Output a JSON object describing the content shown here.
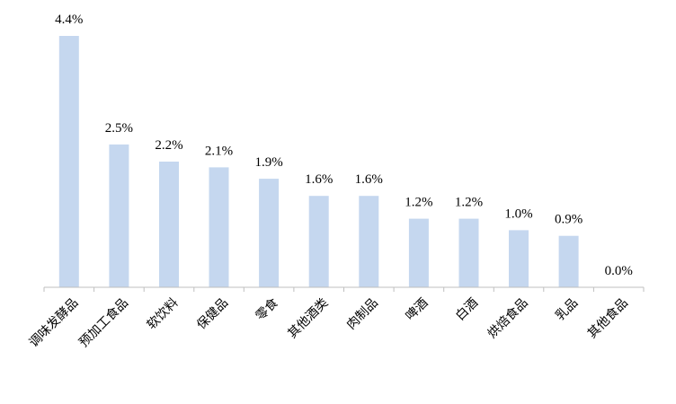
{
  "chart_data": {
    "type": "bar",
    "title": "",
    "xlabel": "",
    "ylabel": "",
    "categories": [
      "调味发酵品",
      "预加工食品",
      "软饮料",
      "保健品",
      "零食",
      "其他酒类",
      "肉制品",
      "啤酒",
      "白酒",
      "烘焙食品",
      "乳品",
      "其他食品"
    ],
    "values": [
      4.4,
      2.5,
      2.2,
      2.1,
      1.9,
      1.6,
      1.6,
      1.2,
      1.2,
      1.0,
      0.9,
      0.0
    ],
    "value_labels": [
      "4.4%",
      "2.5%",
      "2.2%",
      "2.1%",
      "1.9%",
      "1.6%",
      "1.6%",
      "1.2%",
      "1.2%",
      "1.0%",
      "0.9%",
      "0.0%"
    ],
    "ylim": [
      0,
      4.4
    ],
    "grid": false,
    "legend": "none",
    "colors": {
      "bar": "#c5d7ef",
      "axis": "#bfbfbf",
      "text": "#000000"
    }
  }
}
